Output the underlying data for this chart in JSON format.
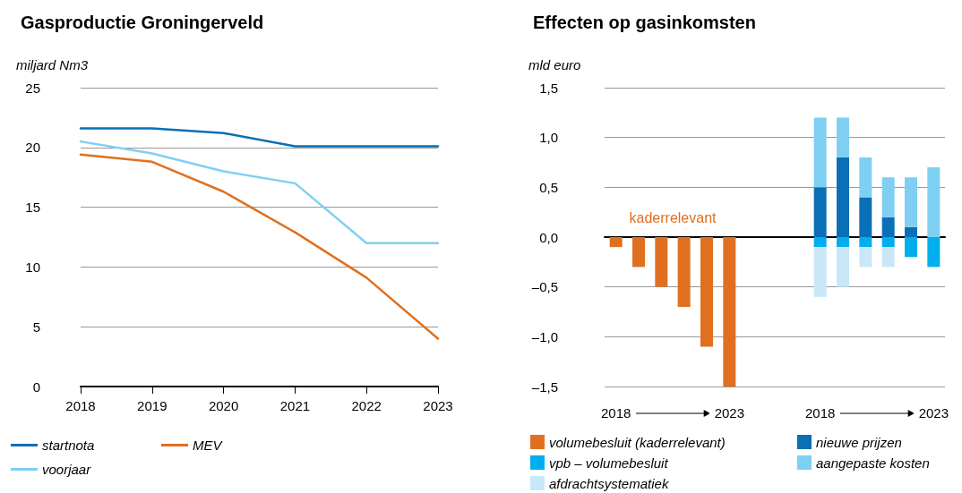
{
  "chart_data": [
    {
      "type": "line",
      "title": "Gasproductie Groningerveld",
      "ylabel": "miljard Nm3",
      "categories": [
        "2018",
        "2019",
        "2020",
        "2021",
        "2022",
        "2023"
      ],
      "series": [
        {
          "name": "startnota",
          "color": "#0a6fb5",
          "values": [
            21.6,
            21.6,
            21.2,
            20.1,
            20.1,
            20.1
          ]
        },
        {
          "name": "voorjaar",
          "color": "#7fcff3",
          "values": [
            20.5,
            19.5,
            18,
            17,
            12,
            12
          ]
        },
        {
          "name": "MEV",
          "color": "#e07020",
          "values": [
            19.4,
            18.8,
            16.3,
            12.9,
            9.1,
            4
          ]
        }
      ],
      "ylim": [
        0,
        25
      ],
      "yticks": [
        0,
        5,
        10,
        15,
        20,
        25
      ],
      "grid": "y",
      "legend": "bottom",
      "marker": "none",
      "line_style": "solid"
    },
    {
      "type": "bar",
      "title": "Effecten op gasinkomsten",
      "ylabel": "mld euro",
      "stacked": true,
      "annotations": [
        "kaderrelevant"
      ],
      "categories": [
        "2018",
        null,
        null,
        null,
        null,
        "2023",
        null,
        null,
        null,
        "2018",
        null,
        null,
        null,
        null,
        "2023"
      ],
      "series": [
        {
          "name": "volumebesluit (kaderrelevant)",
          "color": "#e07020",
          "values": [
            -0.1,
            -0.3,
            -0.5,
            -0.7,
            -1.1,
            -1.5,
            null,
            null,
            null,
            null,
            null,
            null,
            null,
            null,
            null
          ]
        },
        {
          "name": "vpb – volumebesluit",
          "color": "#00aeef",
          "values": [
            null,
            null,
            null,
            null,
            null,
            null,
            null,
            null,
            null,
            -0.1,
            -0.1,
            -0.1,
            -0.1,
            -0.2,
            -0.3
          ]
        },
        {
          "name": "afdrachtsystematiek",
          "color": "#c8e8f8",
          "values": [
            null,
            null,
            null,
            null,
            null,
            null,
            null,
            null,
            null,
            -0.5,
            -0.4,
            -0.2,
            -0.2,
            null,
            null
          ]
        },
        {
          "name": "nieuwe prijzen",
          "color": "#0a6fb5",
          "values": [
            null,
            null,
            null,
            null,
            null,
            null,
            null,
            null,
            null,
            0.5,
            0.8,
            0.4,
            0.2,
            0.1,
            null
          ]
        },
        {
          "name": "aangepaste kosten",
          "color": "#7fcff3",
          "values": [
            null,
            null,
            null,
            null,
            null,
            null,
            null,
            null,
            null,
            0.7,
            0.4,
            0.4,
            0.4,
            0.5,
            0.7
          ]
        }
      ],
      "ylim": [
        -1.5,
        1.5
      ],
      "yticks": [
        {
          "value": -1.5,
          "label": "–1,5"
        },
        {
          "value": -1,
          "label": "–1,0"
        },
        {
          "value": -0.5,
          "label": "–0,5"
        },
        {
          "value": 0,
          "label": "0,0"
        },
        {
          "value": 0.5,
          "label": "0,5"
        },
        {
          "value": 1,
          "label": "1,0"
        },
        {
          "value": 1.5,
          "label": "1,5"
        }
      ],
      "grid": "y",
      "legend": "bottom"
    }
  ]
}
